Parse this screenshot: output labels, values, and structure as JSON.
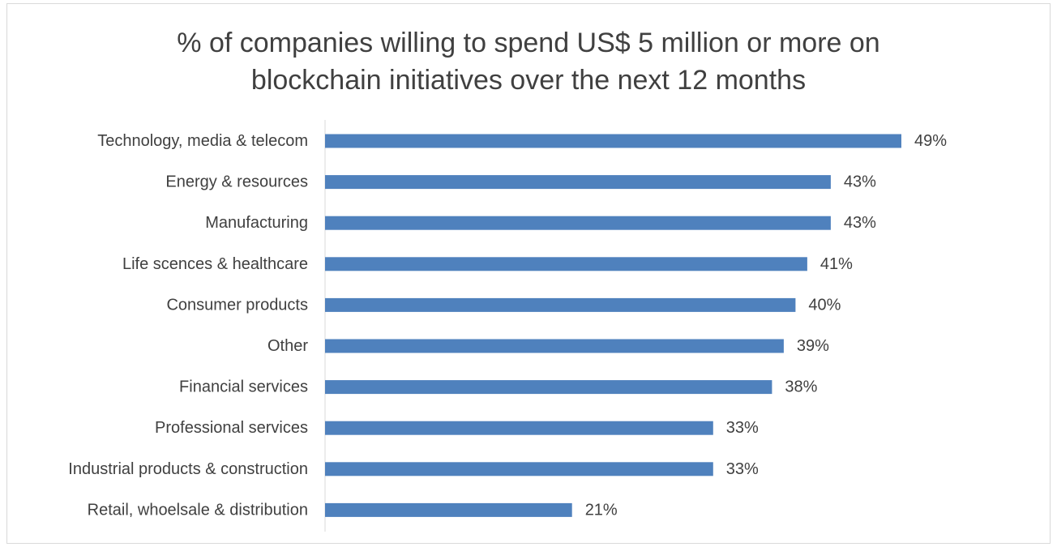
{
  "chart_data": {
    "type": "bar",
    "orientation": "horizontal",
    "title_lines": [
      "% of companies willing to spend US$ 5 million or more on",
      "blockchain initiatives over the next 12 months"
    ],
    "categories": [
      "Technology, media & telecom",
      "Energy & resources",
      "Manufacturing",
      "Life scences & healthcare",
      "Consumer products",
      "Other",
      "Financial services",
      "Professional services",
      "Industrial products & construction",
      "Retail, whoelsale & distribution"
    ],
    "values": [
      49,
      43,
      43,
      41,
      40,
      39,
      38,
      33,
      33,
      21
    ],
    "value_labels": [
      "49%",
      "43%",
      "43%",
      "41%",
      "40%",
      "39%",
      "38%",
      "33%",
      "33%",
      "21%"
    ],
    "value_suffix": "%",
    "xlim": [
      0,
      49
    ],
    "grid": false,
    "legend": "none",
    "bar_color": "#4f81bd",
    "axis_color": "#d9d9d9",
    "text_color": "#404040"
  }
}
